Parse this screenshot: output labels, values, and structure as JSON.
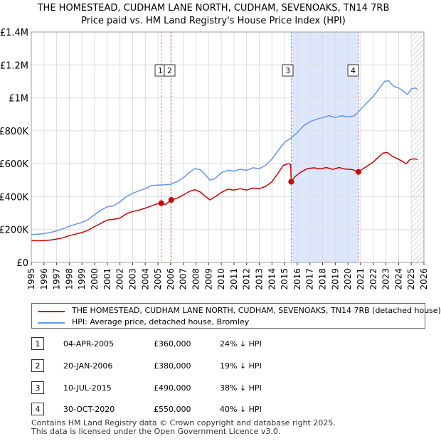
{
  "header": {
    "title_line1": "THE HOMESTEAD, CUDHAM LANE NORTH, CUDHAM, SEVENOAKS, TN14 7RB",
    "title_line2": "Price paid vs. HM Land Registry's House Price Index (HPI)"
  },
  "colors": {
    "property": "#cc0000",
    "hpi": "#6495ed",
    "shade": "#dde6fb",
    "marker_line": "#e06060",
    "future_hatch": "#bbbbbb"
  },
  "chart_data": {
    "type": "line",
    "title": "Price paid vs. HM Land Registry's House Price Index (HPI)",
    "xlim": [
      1995,
      2026
    ],
    "ylim": [
      0,
      1400000
    ],
    "x_ticks": [
      1995,
      1996,
      1997,
      1998,
      1999,
      2000,
      2001,
      2002,
      2003,
      2004,
      2005,
      2006,
      2007,
      2008,
      2009,
      2010,
      2011,
      2012,
      2013,
      2014,
      2015,
      2016,
      2017,
      2018,
      2019,
      2020,
      2021,
      2022,
      2023,
      2024,
      2025,
      2026
    ],
    "y_ticks": [
      {
        "value": 0,
        "label": "£0"
      },
      {
        "value": 200000,
        "label": "£200K"
      },
      {
        "value": 400000,
        "label": "£400K"
      },
      {
        "value": 600000,
        "label": "£600K"
      },
      {
        "value": 800000,
        "label": "£800K"
      },
      {
        "value": 1000000,
        "label": "£1M"
      },
      {
        "value": 1200000,
        "label": "£1.2M"
      },
      {
        "value": 1400000,
        "label": "£1.4M"
      }
    ],
    "shaded_range": [
      2015.52,
      2020.83
    ],
    "future_from": 2025.0,
    "series": [
      {
        "name": "THE HOMESTEAD, CUDHAM LANE NORTH, CUDHAM, SEVENOAKS, TN14 7RB (detached house)",
        "color": "#cc0000",
        "points": [
          [
            1995.0,
            133000
          ],
          [
            1995.5,
            132000
          ],
          [
            1996.0,
            133000
          ],
          [
            1996.5,
            136000
          ],
          [
            1997.0,
            142000
          ],
          [
            1997.5,
            150000
          ],
          [
            1998.0,
            163000
          ],
          [
            1998.5,
            172000
          ],
          [
            1999.0,
            182000
          ],
          [
            1999.5,
            196000
          ],
          [
            2000.0,
            218000
          ],
          [
            2000.5,
            238000
          ],
          [
            2001.0,
            258000
          ],
          [
            2001.5,
            262000
          ],
          [
            2002.0,
            270000
          ],
          [
            2002.5,
            295000
          ],
          [
            2003.0,
            310000
          ],
          [
            2003.5,
            318000
          ],
          [
            2004.0,
            330000
          ],
          [
            2004.5,
            344000
          ],
          [
            2004.9,
            355000
          ],
          [
            2005.26,
            360000
          ],
          [
            2005.6,
            352000
          ],
          [
            2006.05,
            380000
          ],
          [
            2006.5,
            390000
          ],
          [
            2007.0,
            410000
          ],
          [
            2007.5,
            432000
          ],
          [
            2007.9,
            442000
          ],
          [
            2008.3,
            430000
          ],
          [
            2008.7,
            405000
          ],
          [
            2009.1,
            380000
          ],
          [
            2009.5,
            398000
          ],
          [
            2010.0,
            425000
          ],
          [
            2010.5,
            445000
          ],
          [
            2011.0,
            440000
          ],
          [
            2011.5,
            448000
          ],
          [
            2012.0,
            440000
          ],
          [
            2012.5,
            452000
          ],
          [
            2013.0,
            448000
          ],
          [
            2013.5,
            462000
          ],
          [
            2014.0,
            490000
          ],
          [
            2014.5,
            545000
          ],
          [
            2014.9,
            590000
          ],
          [
            2015.3,
            600000
          ],
          [
            2015.48,
            595000
          ],
          [
            2015.52,
            490000
          ],
          [
            2015.8,
            520000
          ],
          [
            2016.3,
            550000
          ],
          [
            2016.8,
            570000
          ],
          [
            2017.3,
            575000
          ],
          [
            2017.8,
            568000
          ],
          [
            2018.3,
            577000
          ],
          [
            2018.8,
            565000
          ],
          [
            2019.3,
            577000
          ],
          [
            2019.8,
            567000
          ],
          [
            2020.3,
            565000
          ],
          [
            2020.83,
            550000
          ],
          [
            2021.2,
            570000
          ],
          [
            2021.6,
            590000
          ],
          [
            2022.0,
            610000
          ],
          [
            2022.4,
            640000
          ],
          [
            2022.8,
            665000
          ],
          [
            2023.1,
            668000
          ],
          [
            2023.5,
            645000
          ],
          [
            2023.9,
            630000
          ],
          [
            2024.3,
            615000
          ],
          [
            2024.6,
            600000
          ],
          [
            2024.9,
            625000
          ],
          [
            2025.2,
            630000
          ],
          [
            2025.5,
            625000
          ]
        ]
      },
      {
        "name": "HPI: Average price, detached house, Bromley",
        "color": "#6495ed",
        "points": [
          [
            1995.0,
            170000
          ],
          [
            1995.5,
            172000
          ],
          [
            1996.0,
            175000
          ],
          [
            1996.5,
            182000
          ],
          [
            1997.0,
            192000
          ],
          [
            1997.5,
            205000
          ],
          [
            1998.0,
            220000
          ],
          [
            1998.5,
            232000
          ],
          [
            1999.0,
            243000
          ],
          [
            1999.5,
            262000
          ],
          [
            2000.0,
            290000
          ],
          [
            2000.5,
            318000
          ],
          [
            2001.0,
            338000
          ],
          [
            2001.5,
            345000
          ],
          [
            2002.0,
            368000
          ],
          [
            2002.5,
            400000
          ],
          [
            2003.0,
            420000
          ],
          [
            2003.5,
            435000
          ],
          [
            2004.0,
            450000
          ],
          [
            2004.5,
            468000
          ],
          [
            2005.0,
            470000
          ],
          [
            2005.5,
            472000
          ],
          [
            2006.0,
            475000
          ],
          [
            2006.5,
            490000
          ],
          [
            2007.0,
            515000
          ],
          [
            2007.5,
            548000
          ],
          [
            2007.9,
            570000
          ],
          [
            2008.3,
            565000
          ],
          [
            2008.7,
            538000
          ],
          [
            2009.1,
            500000
          ],
          [
            2009.5,
            510000
          ],
          [
            2010.0,
            545000
          ],
          [
            2010.5,
            560000
          ],
          [
            2011.0,
            555000
          ],
          [
            2011.5,
            566000
          ],
          [
            2012.0,
            560000
          ],
          [
            2012.5,
            575000
          ],
          [
            2013.0,
            570000
          ],
          [
            2013.5,
            590000
          ],
          [
            2014.0,
            628000
          ],
          [
            2014.5,
            680000
          ],
          [
            2015.0,
            730000
          ],
          [
            2015.5,
            755000
          ],
          [
            2016.0,
            790000
          ],
          [
            2016.5,
            830000
          ],
          [
            2017.0,
            855000
          ],
          [
            2017.5,
            870000
          ],
          [
            2018.0,
            880000
          ],
          [
            2018.5,
            892000
          ],
          [
            2019.0,
            880000
          ],
          [
            2019.5,
            892000
          ],
          [
            2020.0,
            885000
          ],
          [
            2020.5,
            890000
          ],
          [
            2021.0,
            930000
          ],
          [
            2021.5,
            970000
          ],
          [
            2022.0,
            1010000
          ],
          [
            2022.5,
            1060000
          ],
          [
            2022.9,
            1100000
          ],
          [
            2023.2,
            1105000
          ],
          [
            2023.6,
            1070000
          ],
          [
            2024.0,
            1060000
          ],
          [
            2024.4,
            1040000
          ],
          [
            2024.7,
            1020000
          ],
          [
            2025.0,
            1055000
          ],
          [
            2025.3,
            1060000
          ],
          [
            2025.5,
            1050000
          ]
        ]
      }
    ],
    "transactions": [
      {
        "num": "1",
        "date": "04-APR-2005",
        "price": "£360,000",
        "hpi": "24% ↓ HPI",
        "x": 2005.26,
        "y": 360000
      },
      {
        "num": "2",
        "date": "20-JAN-2006",
        "price": "£380,000",
        "hpi": "19% ↓ HPI",
        "x": 2006.05,
        "y": 380000
      },
      {
        "num": "3",
        "date": "10-JUL-2015",
        "price": "£490,000",
        "hpi": "38% ↓ HPI",
        "x": 2015.52,
        "y": 490000
      },
      {
        "num": "4",
        "date": "30-OCT-2020",
        "price": "£550,000",
        "hpi": "40% ↓ HPI",
        "x": 2020.83,
        "y": 550000
      }
    ]
  },
  "legend": {
    "property_label": "THE HOMESTEAD, CUDHAM LANE NORTH, CUDHAM, SEVENOAKS, TN14 7RB (detached house)",
    "hpi_label": "HPI: Average price, detached house, Bromley"
  },
  "footer": {
    "line1": "Contains HM Land Registry data © Crown copyright and database right 2025.",
    "line2": "This data is licensed under the Open Government Licence v3.0."
  }
}
